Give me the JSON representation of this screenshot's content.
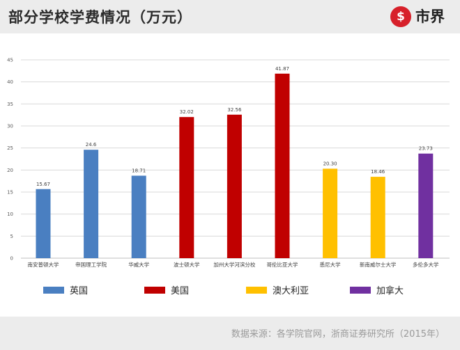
{
  "header": {
    "title": "部分学校学费情况（万元）",
    "logo_mark": "$",
    "logo_text": "市界"
  },
  "footer": {
    "source": "数据来源：各学院官网，浙商证券研究所（2015年）"
  },
  "chart_data": {
    "type": "bar",
    "title": "部分学校学费情况（万元）",
    "categories": [
      "南安普顿大学",
      "帝国理工学院",
      "华威大学",
      "波士顿大学",
      "加州大学河滨分校",
      "哥伦比亚大学",
      "悉尼大学",
      "新南威尔士大学",
      "多伦多大学"
    ],
    "values": [
      15.67,
      24.6,
      18.71,
      32.02,
      32.56,
      41.87,
      20.3,
      18.46,
      23.73
    ],
    "value_labels": [
      "15.67",
      "24.6",
      "18.71",
      "32.02",
      "32.56",
      "41.87",
      "20.30",
      "18.46",
      "23.73"
    ],
    "groups": [
      "英国",
      "英国",
      "英国",
      "美国",
      "美国",
      "美国",
      "澳大利亚",
      "澳大利亚",
      "加拿大"
    ],
    "series": [
      {
        "name": "英国",
        "color": "#4a7fc1"
      },
      {
        "name": "美国",
        "color": "#c00000"
      },
      {
        "name": "澳大利亚",
        "color": "#ffc000"
      },
      {
        "name": "加拿大",
        "color": "#7030a0"
      }
    ],
    "ylim": [
      0,
      45
    ],
    "yticks": [
      "0",
      "5",
      "10",
      "15",
      "20",
      "25",
      "30",
      "35",
      "40",
      "45"
    ],
    "grid": true,
    "legend": "bottom"
  }
}
